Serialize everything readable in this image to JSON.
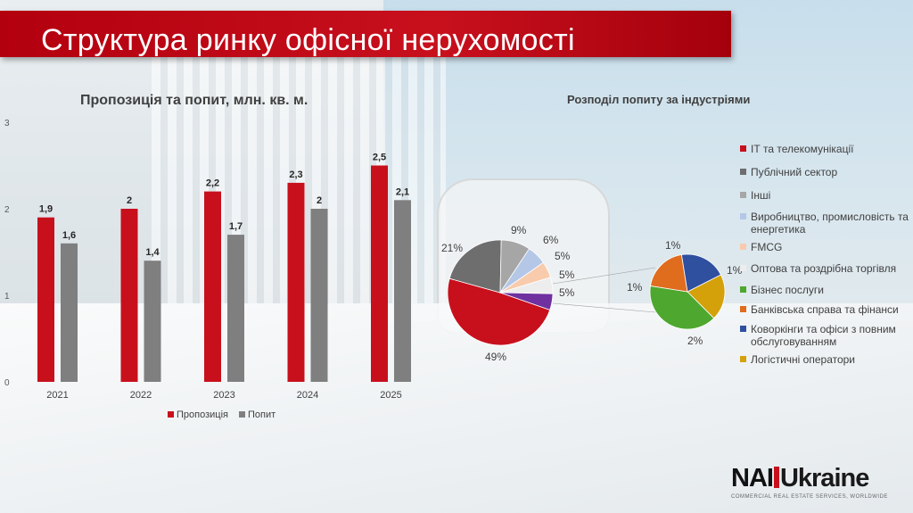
{
  "slide_title": "Структура ринку офісної нерухомості",
  "logo": {
    "brand_a": "NAI",
    "brand_b": "Ukraine",
    "tagline": "COMMERCIAL REAL ESTATE SERVICES, WORLDWIDE"
  },
  "colors": {
    "supply": "#c8101d",
    "demand": "#7f7f7f",
    "title_banner": "#c8101d"
  },
  "chart_data": [
    {
      "type": "bar",
      "title": "Пропозиція та попит, млн. кв. м.",
      "categories": [
        "2021",
        "2022",
        "2023",
        "2024",
        "2025"
      ],
      "series": [
        {
          "name": "Пропозиція",
          "values": [
            1.9,
            2.0,
            2.2,
            2.3,
            2.5
          ],
          "labels": [
            "1,9",
            "2",
            "2,2",
            "2,3",
            "2,5"
          ],
          "color": "#c8101d"
        },
        {
          "name": "Попит",
          "values": [
            1.6,
            1.4,
            1.7,
            2.0,
            2.1
          ],
          "labels": [
            "1,6",
            "1,4",
            "1,7",
            "2",
            "2,1"
          ],
          "color": "#7f7f7f"
        }
      ],
      "ylim": [
        0,
        3
      ],
      "yticks": [
        "0",
        "1",
        "2",
        "3"
      ],
      "legend_position": "bottom"
    },
    {
      "type": "pie",
      "title": "Розподіл попиту за індустріями",
      "slices": [
        {
          "label": "ІТ та телекомунікації",
          "value": 49,
          "text": "49%",
          "color": "#c8101d"
        },
        {
          "label": "Публічний сектор",
          "value": 21,
          "text": "21%",
          "color": "#6e6e6e"
        },
        {
          "label": "Інші",
          "value": 9,
          "text": "9%",
          "color": "#a6a6a6"
        },
        {
          "label": "Виробництво, промисловість та енергетика",
          "value": 6,
          "text": "6%",
          "color": "#b4c7e7"
        },
        {
          "label": "FMCG",
          "value": 5,
          "text": "5%",
          "color": "#f8cbad"
        },
        {
          "label": "Оптова та роздрібна торгівля",
          "value": 5,
          "text": "5%",
          "color": "#ededed"
        },
        {
          "label": "Бізнес послуги",
          "value": 2,
          "text": "2%",
          "color": "#4ea72e"
        },
        {
          "label": "Банківська справа та фінанси",
          "value": 1,
          "text": "1%",
          "color": "#e06c1e"
        },
        {
          "label": "Коворкінги та офіси з повним обслуговуванням",
          "value": 1,
          "text": "1%",
          "color": "#2f4f9f"
        },
        {
          "label": "Логістичні оператори",
          "value": 1,
          "text": "1%",
          "color": "#d4a10a"
        }
      ],
      "main_pie_labels": [
        "49%",
        "21%",
        "9%",
        "6%",
        "5%",
        "5%",
        "5%"
      ],
      "small_pie_labels": [
        "1%",
        "1%",
        "1%",
        "2%"
      ],
      "legend_position": "right"
    }
  ]
}
